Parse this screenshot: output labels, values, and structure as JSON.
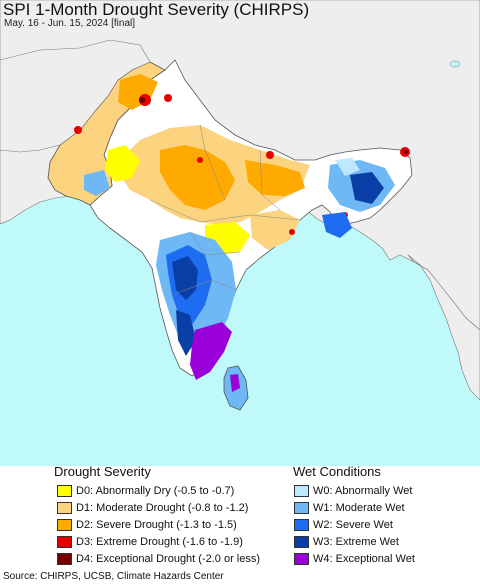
{
  "title": "SPI 1-Month Drought Severity (CHIRPS)",
  "subtitle": "May. 16 - Jun. 15, 2024 [final]",
  "legend": {
    "drought_heading": "Drought Severity",
    "wet_heading": "Wet Conditions",
    "drought": [
      {
        "label": "D0: Abnormally Dry (-0.5 to -0.7)",
        "color": "#ffff00"
      },
      {
        "label": "D1: Moderate Drought (-0.8 to -1.2)",
        "color": "#fcd37f"
      },
      {
        "label": "D2: Severe Drought (-1.3 to -1.5)",
        "color": "#ffaa00"
      },
      {
        "label": "D3: Extreme Drought (-1.6 to -1.9)",
        "color": "#e60000"
      },
      {
        "label": "D4: Exceptional Drought (-2.0 or less)",
        "color": "#730000"
      }
    ],
    "wet": [
      {
        "label": "W0: Abnormally Wet",
        "color": "#bde8ff"
      },
      {
        "label": "W1: Moderate Wet",
        "color": "#6db8f5"
      },
      {
        "label": "W2: Severe Wet",
        "color": "#1e6cf0"
      },
      {
        "label": "W3: Extreme Wet",
        "color": "#0b3fa8"
      },
      {
        "label": "W4: Exceptional Wet",
        "color": "#9a00d8"
      }
    ]
  },
  "source": "Source: CHIRPS, UCSB, Climate Hazards Center",
  "map_colors": {
    "ocean": "#bff9f9",
    "land_outside": "#eeeeee",
    "land_inside": "#ffffff",
    "border": "#555555"
  }
}
